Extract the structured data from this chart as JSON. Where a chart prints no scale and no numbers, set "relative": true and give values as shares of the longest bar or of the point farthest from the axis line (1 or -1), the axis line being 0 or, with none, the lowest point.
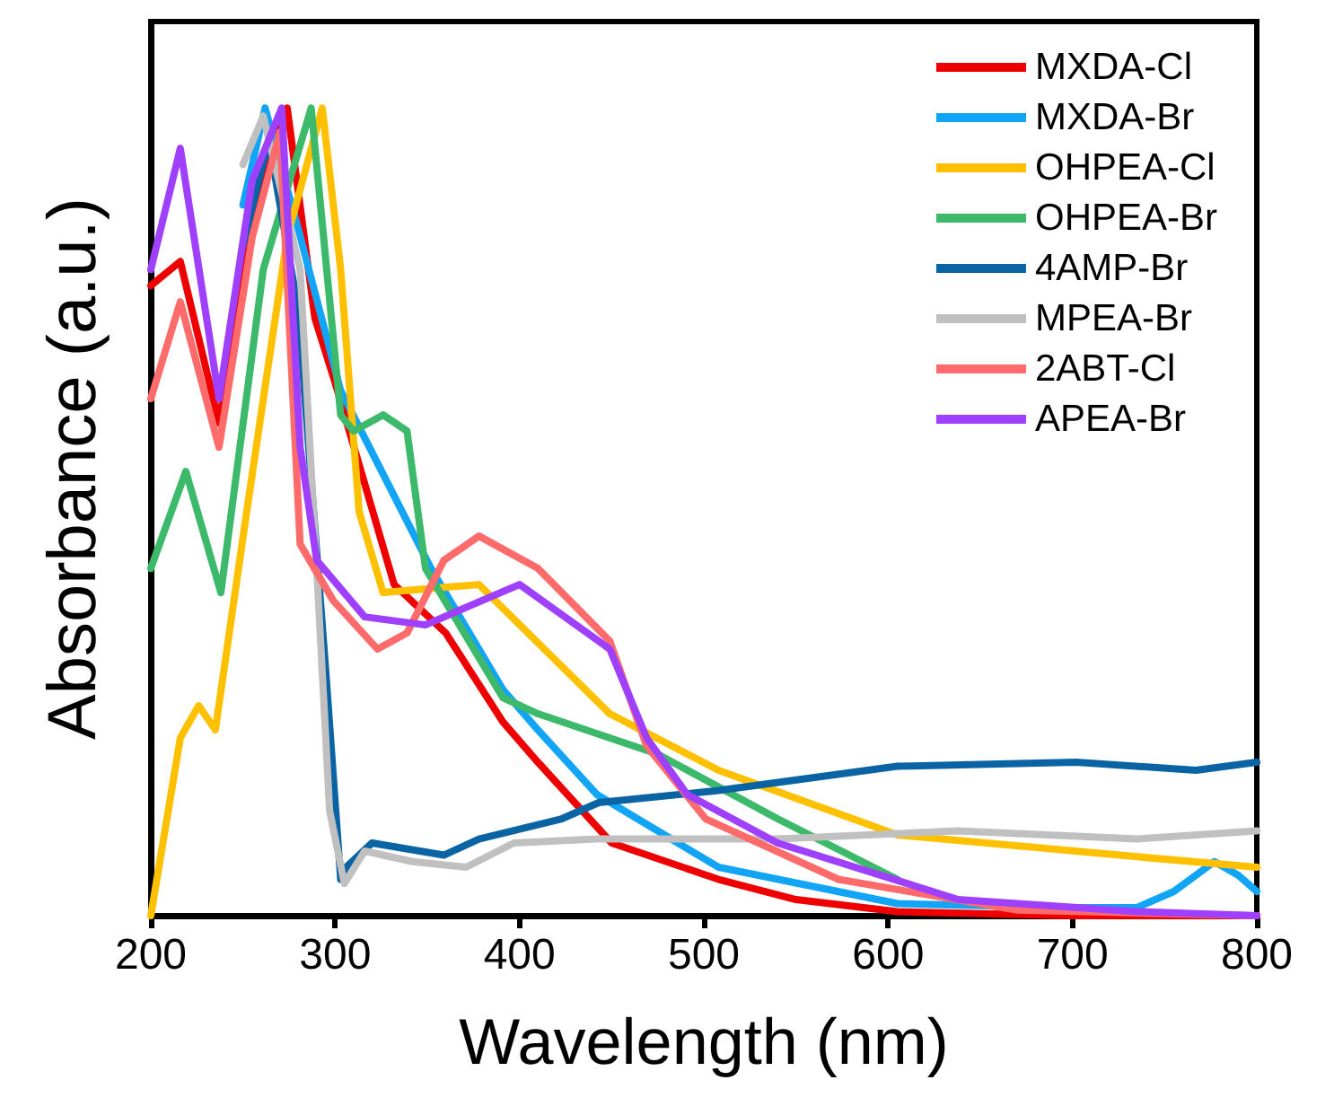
{
  "chart_data": {
    "type": "line",
    "xlabel": "Wavelength (nm)",
    "ylabel": "Absorbance (a.u.)",
    "xlim": [
      200,
      800
    ],
    "xticks": [
      200,
      300,
      400,
      500,
      600,
      700,
      800
    ],
    "relative": true,
    "tick_labels": "x",
    "legend": "top right",
    "grid": false,
    "marker": "none",
    "line_style": "solid",
    "series": [
      {
        "name": "MXDA-Cl",
        "color": "#ee0000",
        "x": [
          200,
          216,
          237,
          255,
          274,
          289,
          300,
          332,
          360,
          391,
          410,
          450,
          508,
          550,
          605,
          700,
          800
        ],
        "values": [
          0.78,
          0.81,
          0.61,
          0.87,
          1.0,
          0.74,
          0.66,
          0.41,
          0.35,
          0.24,
          0.19,
          0.09,
          0.045,
          0.02,
          0.005,
          0.0,
          0.0
        ]
      },
      {
        "name": "MXDA-Br",
        "color": "#12a4f5",
        "x": [
          250,
          262,
          280,
          303,
          352,
          391,
          410,
          442,
          508,
          605,
          700,
          735,
          755,
          777,
          790,
          800
        ],
        "values": [
          0.88,
          1.0,
          0.85,
          0.65,
          0.43,
          0.28,
          0.23,
          0.15,
          0.06,
          0.015,
          0.01,
          0.01,
          0.03,
          0.067,
          0.05,
          0.03
        ]
      },
      {
        "name": "OHPEA-Cl",
        "color": "#ffc000",
        "x": [
          200,
          216,
          226,
          235,
          252,
          274,
          293,
          303,
          313,
          326,
          378,
          449,
          508,
          605,
          735,
          800
        ],
        "values": [
          0.0,
          0.22,
          0.26,
          0.23,
          0.5,
          0.84,
          1.0,
          0.8,
          0.5,
          0.4,
          0.41,
          0.25,
          0.18,
          0.1,
          0.073,
          0.06
        ]
      },
      {
        "name": "OHPEA-Br",
        "color": "#3cb96a",
        "x": [
          200,
          219,
          238,
          261,
          287,
          303,
          310,
          326,
          339,
          349,
          391,
          410,
          475,
          540,
          605
        ],
        "values": [
          0.43,
          0.55,
          0.4,
          0.8,
          1.0,
          0.62,
          0.6,
          0.62,
          0.6,
          0.43,
          0.27,
          0.25,
          0.2,
          0.12,
          0.045
        ]
      },
      {
        "name": "4AMP-Br",
        "color": "#0a64a4",
        "x": [
          250,
          264,
          280,
          295,
          303,
          306,
          320,
          359,
          378,
          423,
          443,
          508,
          605,
          702,
          767,
          800
        ],
        "values": [
          0.83,
          0.96,
          0.75,
          0.3,
          0.045,
          0.06,
          0.09,
          0.075,
          0.095,
          0.12,
          0.14,
          0.155,
          0.185,
          0.19,
          0.18,
          0.19
        ]
      },
      {
        "name": "MPEA-Br",
        "color": "#c0c0c0",
        "x": [
          250,
          261,
          281,
          290,
          297,
          305,
          316,
          342,
          371,
          397,
          442,
          540,
          638,
          735,
          800
        ],
        "values": [
          0.93,
          0.99,
          0.8,
          0.43,
          0.13,
          0.04,
          0.08,
          0.067,
          0.06,
          0.09,
          0.095,
          0.095,
          0.105,
          0.095,
          0.105
        ]
      },
      {
        "name": "2ABT-Cl",
        "color": "#ff6b6b",
        "x": [
          200,
          216,
          237,
          255,
          270,
          281,
          299,
          323,
          339,
          359,
          378,
          410,
          449,
          469,
          501,
          573,
          670,
          800
        ],
        "values": [
          0.64,
          0.76,
          0.58,
          0.84,
          0.97,
          0.46,
          0.39,
          0.33,
          0.35,
          0.44,
          0.47,
          0.43,
          0.34,
          0.21,
          0.12,
          0.045,
          0.007,
          0.0
        ]
      },
      {
        "name": "APEA-Br",
        "color": "#a040ff",
        "x": [
          200,
          216,
          237,
          255,
          271,
          281,
          290,
          316,
          349,
          400,
          449,
          469,
          491,
          540,
          638,
          735,
          800
        ],
        "values": [
          0.8,
          0.95,
          0.64,
          0.91,
          1.0,
          0.58,
          0.44,
          0.37,
          0.36,
          0.41,
          0.33,
          0.22,
          0.15,
          0.09,
          0.02,
          0.005,
          0.0
        ]
      }
    ]
  }
}
